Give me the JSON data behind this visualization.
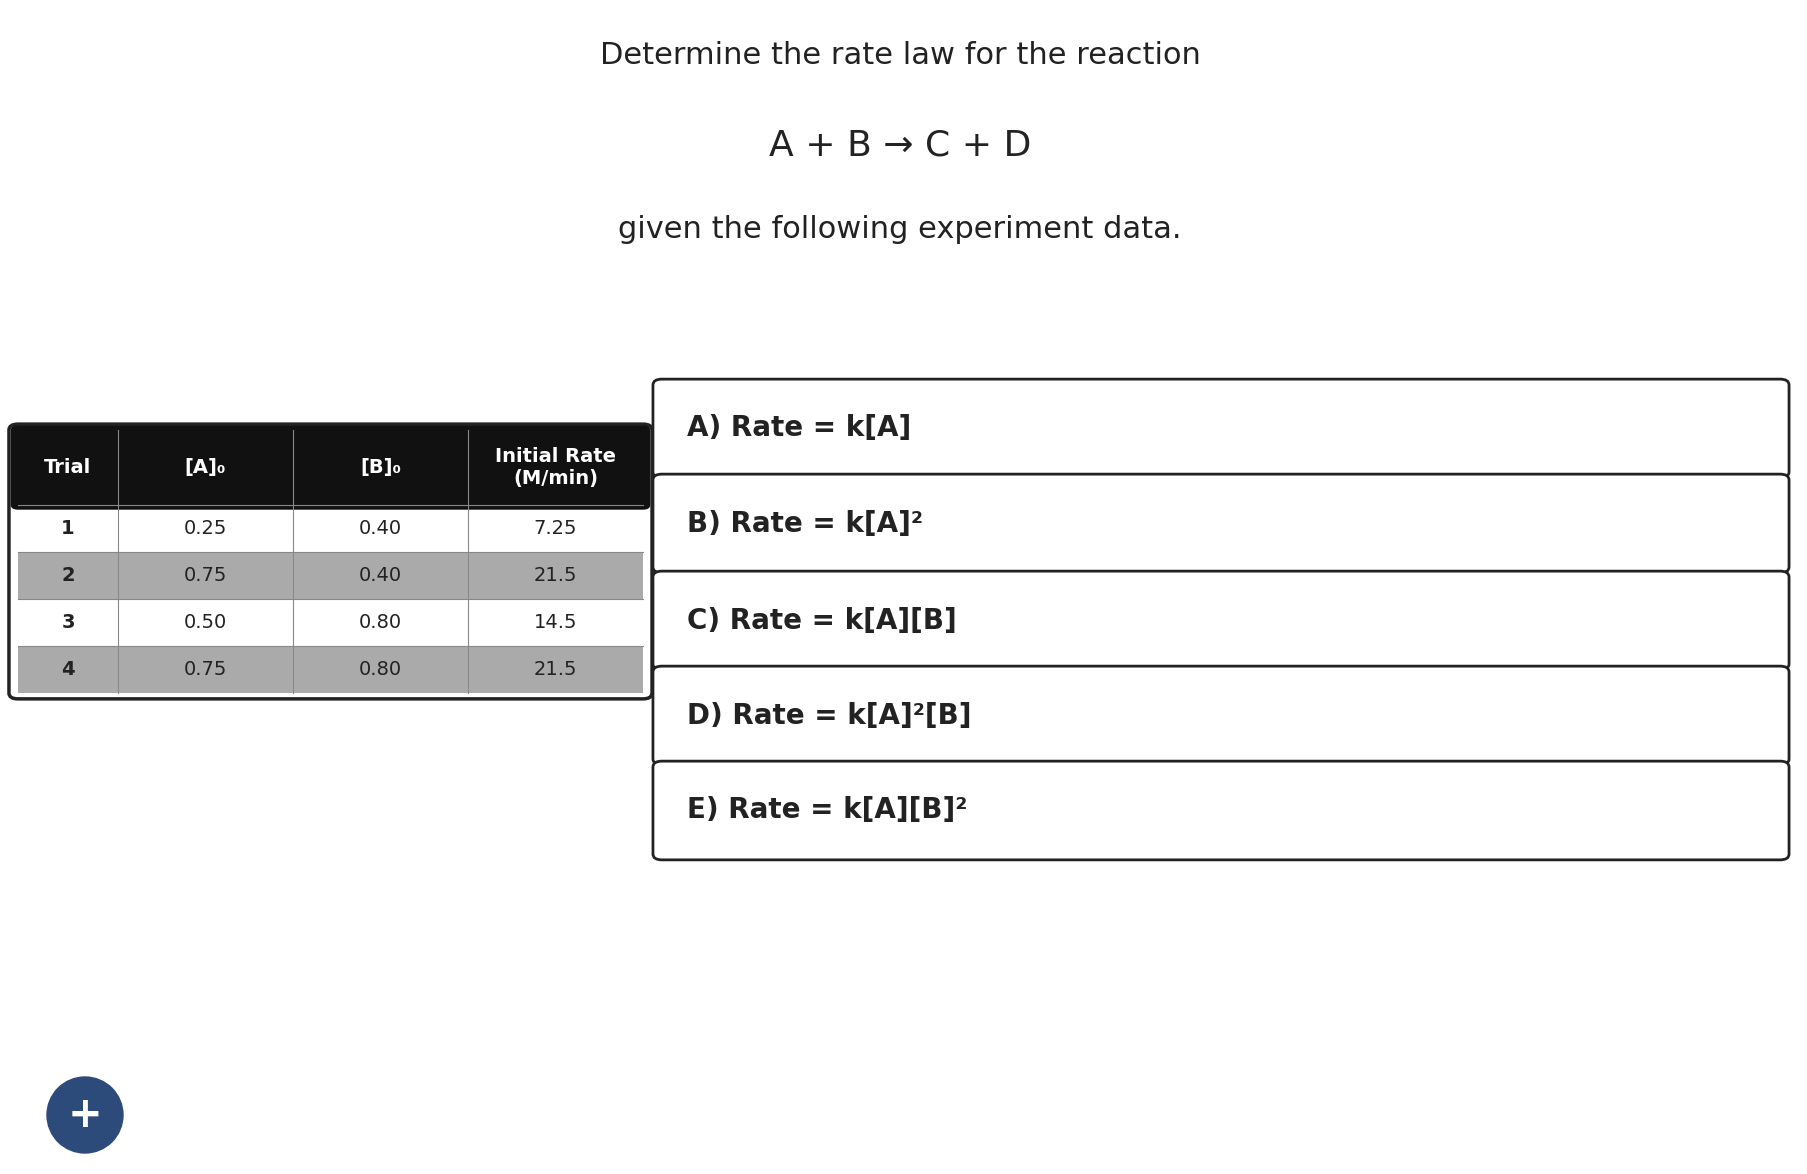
{
  "title_line1": "Determine the rate law for the reaction",
  "equation": "A + B → C + D",
  "subtitle": "given the following experiment data.",
  "table_headers": [
    "Trial",
    "[A]₀",
    "[B]₀",
    "Initial Rate\n(M/min)"
  ],
  "table_data": [
    [
      "1",
      "0.25",
      "0.40",
      "7.25"
    ],
    [
      "2",
      "0.75",
      "0.40",
      "21.5"
    ],
    [
      "3",
      "0.50",
      "0.80",
      "14.5"
    ],
    [
      "4",
      "0.75",
      "0.80",
      "21.5"
    ]
  ],
  "shaded_rows": [
    1,
    3
  ],
  "row_shade_color": "#aaaaaa",
  "header_bg_color": "#111111",
  "header_text_color": "#ffffff",
  "table_border_color": "#222222",
  "options": [
    "A) Rate = k[A]",
    "B) Rate = k[A]²",
    "C) Rate = k[A][B]",
    "D) Rate = k[A]²[B]",
    "E) Rate = k[A][B]²"
  ],
  "bg_color": "#ffffff",
  "text_color": "#222222",
  "plus_button_color": "#2c4a7a"
}
